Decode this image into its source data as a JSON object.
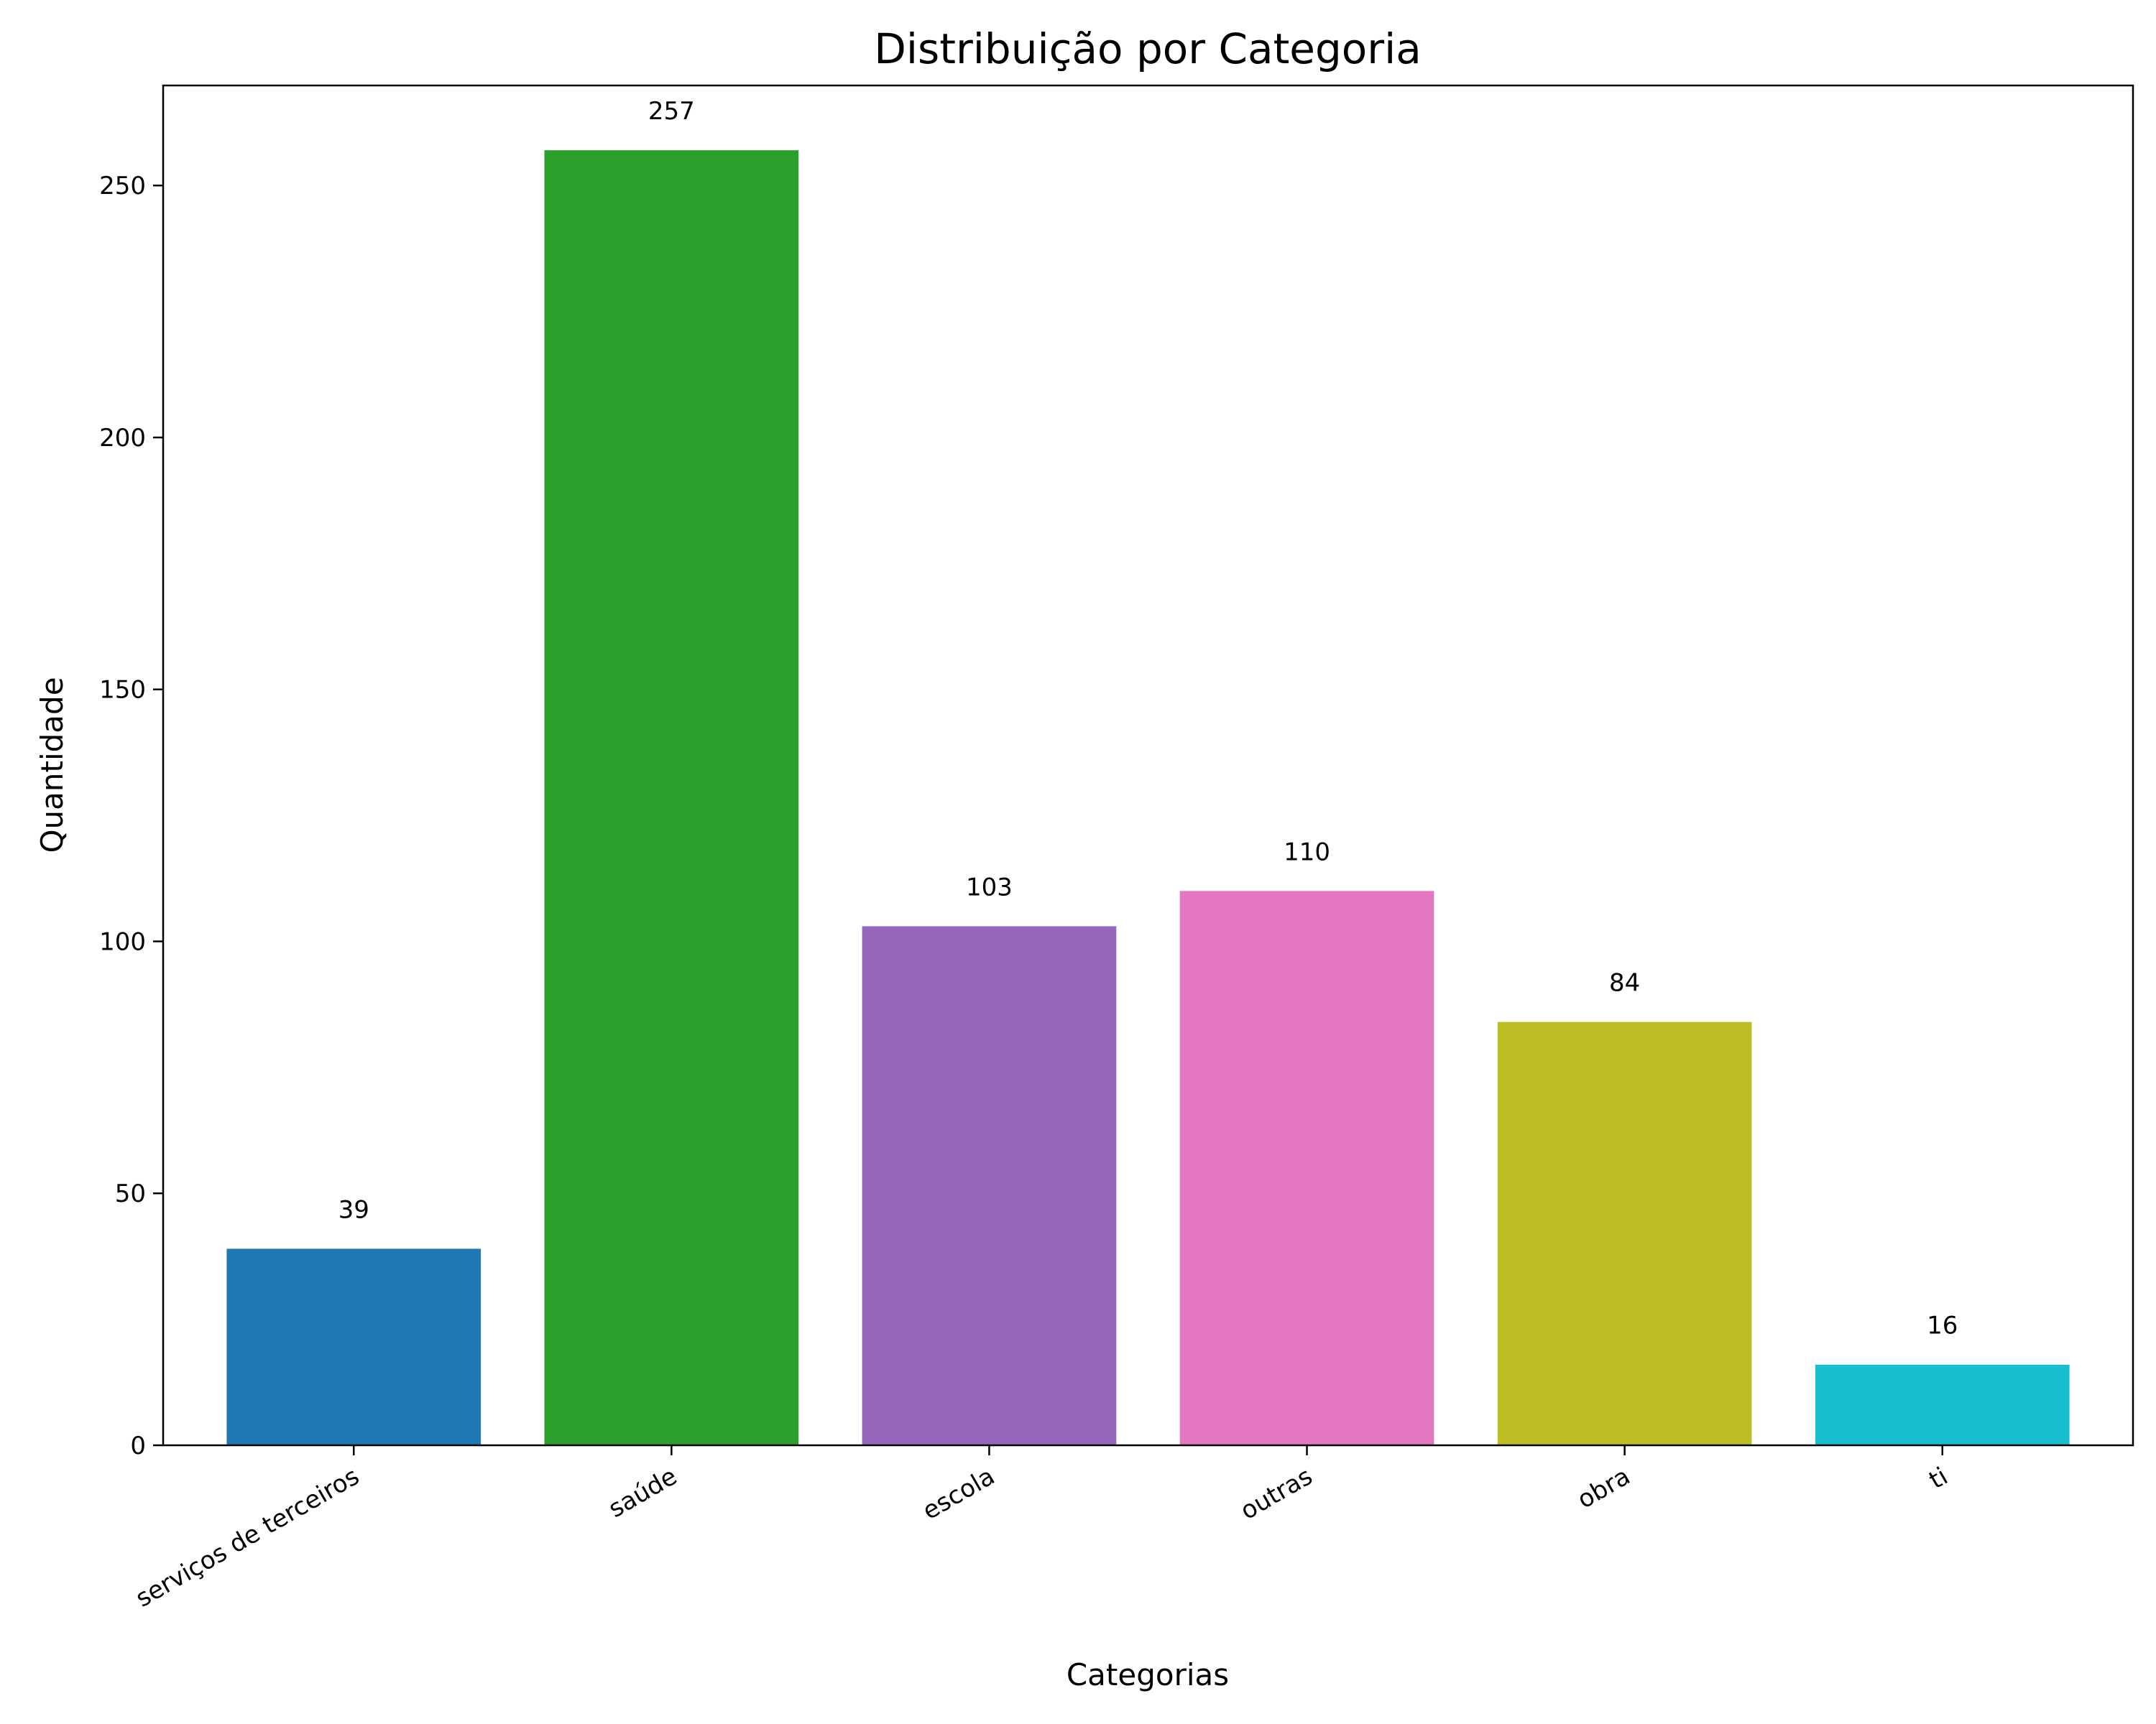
{
  "chart_data": {
    "type": "bar",
    "title": "Distribuição por Categoria",
    "xlabel": "Categorias",
    "ylabel": "Quantidade",
    "categories": [
      "serviços de terceiros",
      "saúde",
      "escola",
      "outras",
      "obra",
      "ti"
    ],
    "values": [
      39,
      257,
      103,
      110,
      84,
      16
    ],
    "colors": [
      "#1f77b4",
      "#2ca02c",
      "#9467bd",
      "#e377c2",
      "#bcbd22",
      "#17becf"
    ],
    "ylim": [
      0,
      269.85
    ],
    "yticks": [
      0,
      50,
      100,
      150,
      200,
      250
    ],
    "grid": false,
    "legend": "none"
  }
}
